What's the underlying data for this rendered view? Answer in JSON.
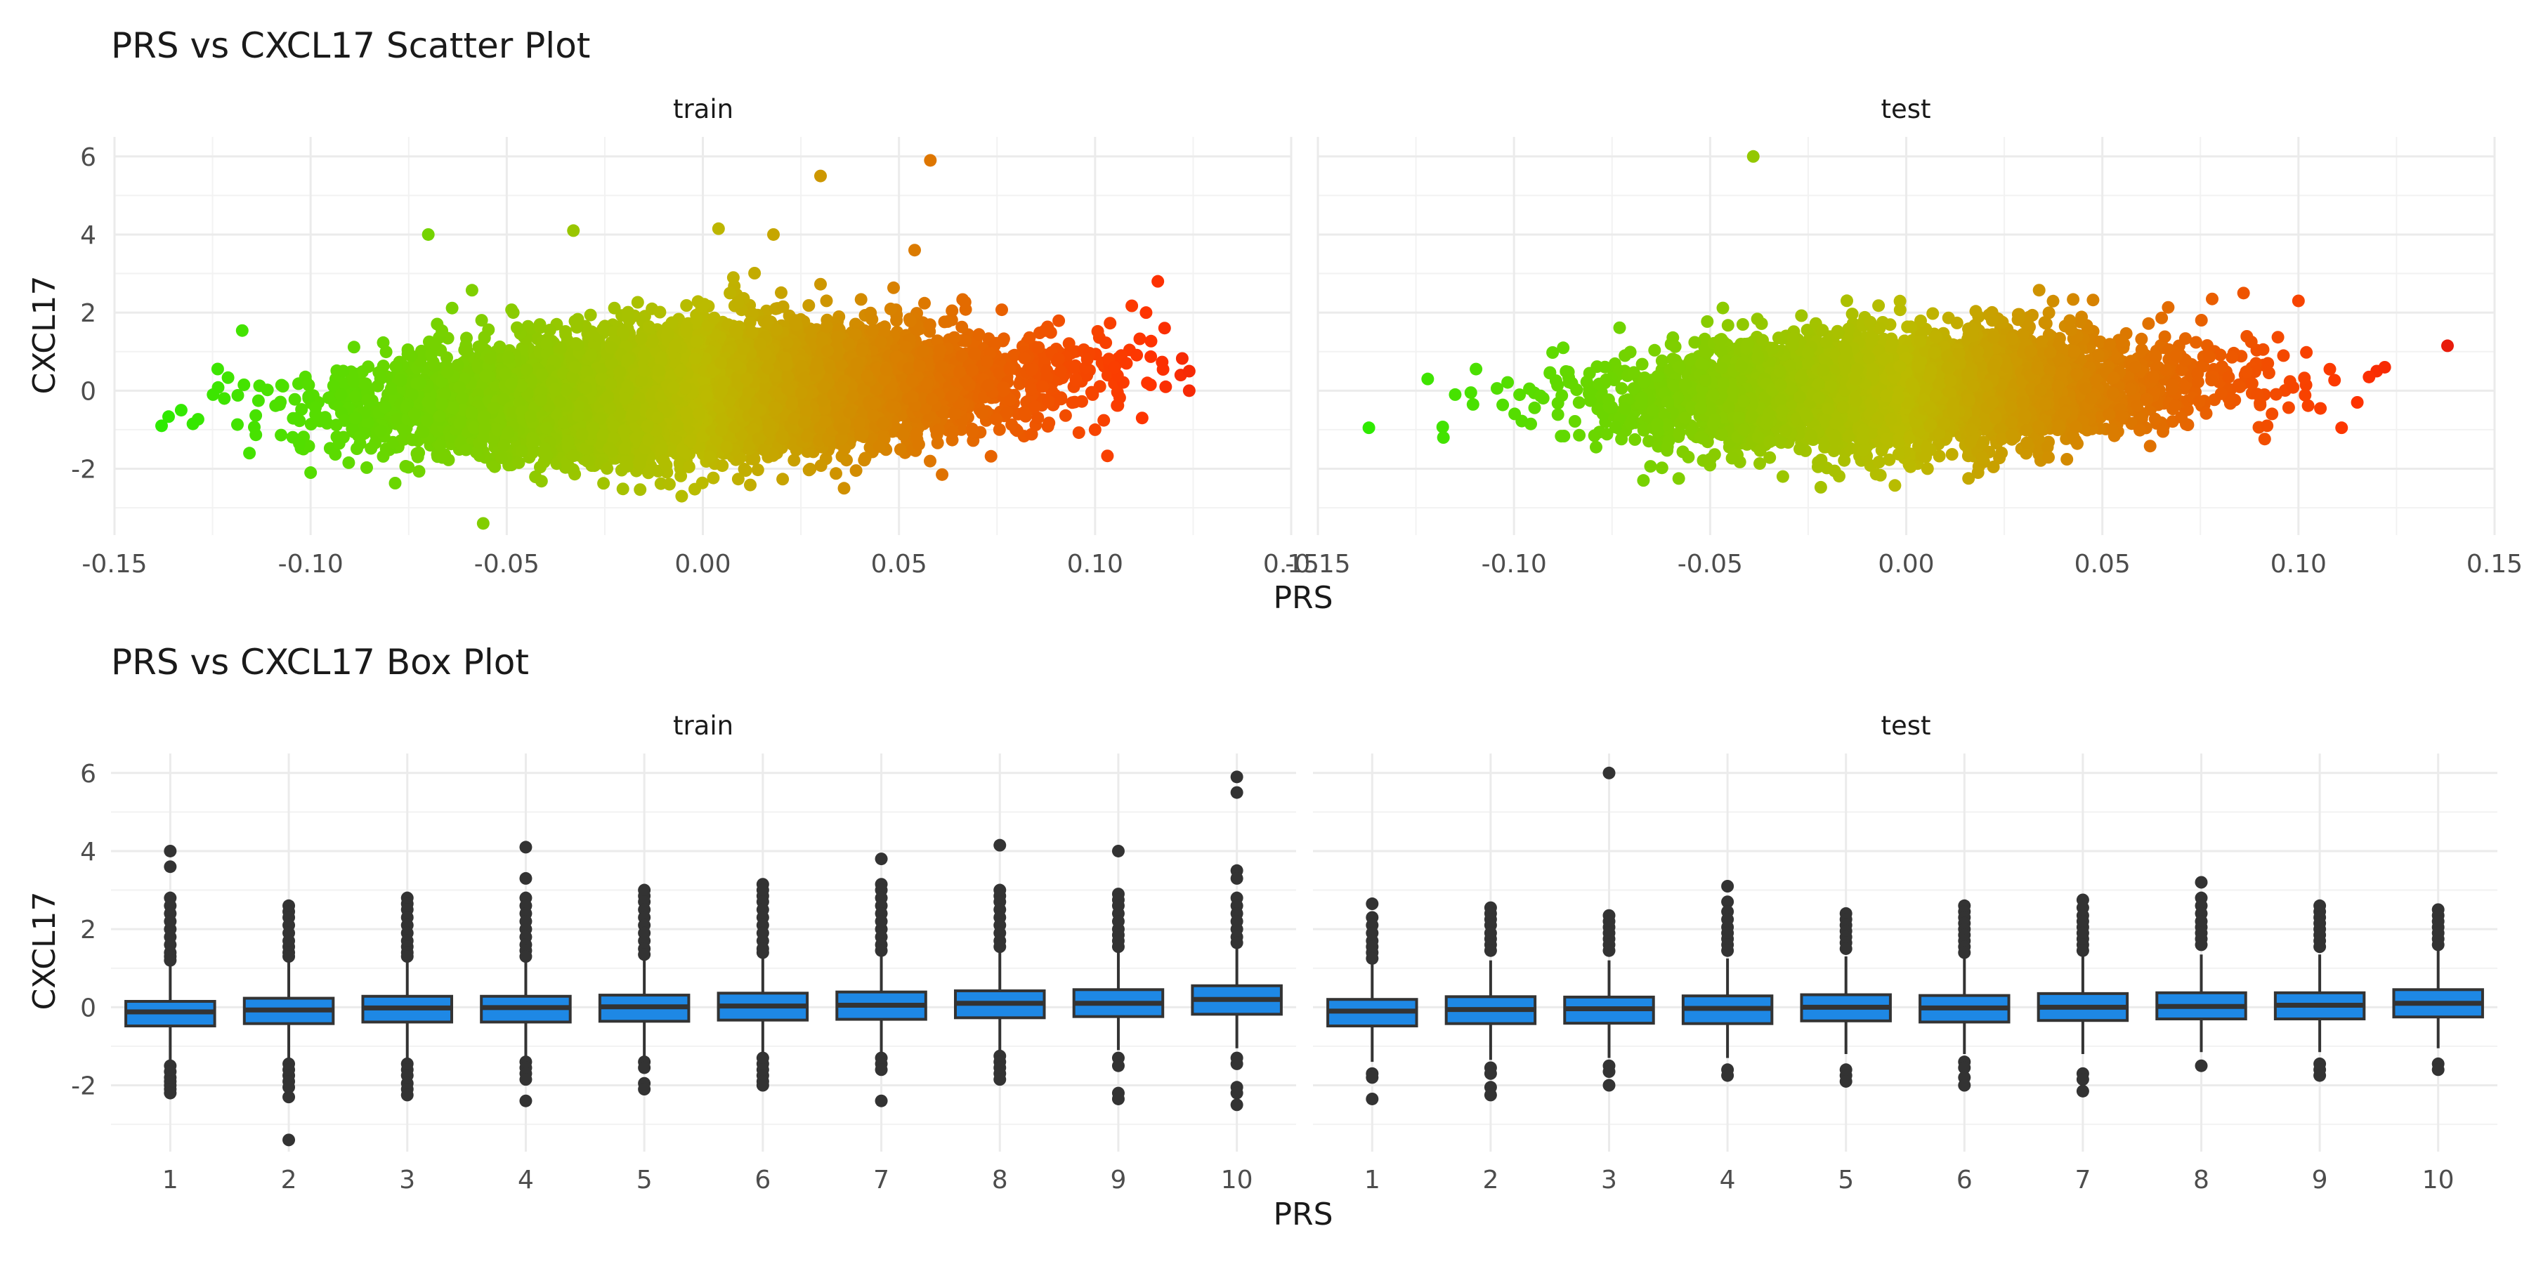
{
  "chart_data": [
    {
      "type": "scatter",
      "title": "PRS vs CXCL17 Scatter Plot",
      "xlabel": "PRS",
      "ylabel": "CXCL17",
      "xlim": [
        -0.15,
        0.15
      ],
      "ylim": [
        -3.7,
        6.5
      ],
      "x_ticks": [
        "-0.15",
        "-0.10",
        "-0.05",
        "0.00",
        "0.05",
        "0.10",
        "0.15"
      ],
      "y_ticks": [
        "-2",
        "0",
        "2",
        "4",
        "6"
      ],
      "color_scale": {
        "low": "#22ee00",
        "mid": "#bbbb00",
        "high": "#ff3300",
        "top": "#dd1111"
      },
      "panels": [
        {
          "name": "train",
          "cloud": {
            "n": 9000,
            "x_sd": 0.038,
            "y_mean": 0.0,
            "y_sd": 0.8,
            "y_slope": 4.0,
            "x_clip": [
              -0.14,
              0.125
            ],
            "seed": 11
          },
          "points": [
            {
              "x": -0.138,
              "y": -0.9
            },
            {
              "x": -0.133,
              "y": -0.5
            },
            {
              "x": -0.13,
              "y": -0.85
            },
            {
              "x": -0.122,
              "y": -0.2
            },
            {
              "x": -0.117,
              "y": 0.15
            },
            {
              "x": -0.1,
              "y": -2.1
            },
            {
              "x": -0.07,
              "y": 4.0
            },
            {
              "x": -0.056,
              "y": -3.4
            },
            {
              "x": -0.033,
              "y": 4.1
            },
            {
              "x": 0.004,
              "y": 4.15
            },
            {
              "x": 0.018,
              "y": 4.0
            },
            {
              "x": 0.03,
              "y": 5.5
            },
            {
              "x": 0.058,
              "y": 5.9
            },
            {
              "x": 0.054,
              "y": 3.6
            },
            {
              "x": 0.036,
              "y": -2.5
            },
            {
              "x": 0.061,
              "y": -2.15
            },
            {
              "x": 0.113,
              "y": 2.0
            },
            {
              "x": 0.116,
              "y": 2.8
            },
            {
              "x": 0.124,
              "y": 0.5
            },
            {
              "x": 0.124,
              "y": 0.0
            },
            {
              "x": 0.118,
              "y": 0.1
            },
            {
              "x": 0.112,
              "y": -0.7
            },
            {
              "x": 0.1,
              "y": -1.0
            },
            {
              "x": 0.108,
              "y": 0.7
            },
            {
              "x": 0.098,
              "y": 0.8
            },
            {
              "x": 0.105,
              "y": 0.6
            }
          ]
        },
        {
          "name": "test",
          "cloud": {
            "n": 4200,
            "x_sd": 0.035,
            "y_mean": 0.0,
            "y_sd": 0.75,
            "y_slope": 3.0,
            "x_clip": [
              -0.125,
              0.125
            ],
            "seed": 23
          },
          "points": [
            {
              "x": -0.137,
              "y": -0.95
            },
            {
              "x": -0.122,
              "y": 0.3
            },
            {
              "x": -0.118,
              "y": -1.2
            },
            {
              "x": -0.115,
              "y": -0.1
            },
            {
              "x": -0.111,
              "y": -0.05
            },
            {
              "x": -0.039,
              "y": 6.0
            },
            {
              "x": -0.067,
              "y": -2.3
            },
            {
              "x": -0.058,
              "y": -2.25
            },
            {
              "x": 0.122,
              "y": 0.6
            },
            {
              "x": 0.138,
              "y": 1.15
            },
            {
              "x": 0.111,
              "y": -0.95
            },
            {
              "x": 0.1,
              "y": 2.3
            },
            {
              "x": 0.092,
              "y": -0.9
            },
            {
              "x": 0.086,
              "y": 2.5
            },
            {
              "x": 0.078,
              "y": 2.35
            },
            {
              "x": 0.115,
              "y": -0.3
            },
            {
              "x": 0.118,
              "y": 0.35
            },
            {
              "x": 0.108,
              "y": 0.55
            }
          ]
        }
      ]
    },
    {
      "type": "box",
      "title": "PRS vs CXCL17 Box Plot",
      "xlabel": "PRS",
      "ylabel": "CXCL17",
      "ylim": [
        -3.7,
        6.5
      ],
      "categories": [
        "1",
        "2",
        "3",
        "4",
        "5",
        "6",
        "7",
        "8",
        "9",
        "10"
      ],
      "y_ticks": [
        "-2",
        "0",
        "2",
        "4",
        "6"
      ],
      "box_color": "#1e88e5",
      "panels": [
        {
          "name": "train",
          "boxes": [
            {
              "q1": -0.48,
              "median": -0.12,
              "q3": 0.15,
              "lo": -1.4,
              "hi": 1.1,
              "out": [
                4.0,
                3.6,
                2.8,
                2.6,
                2.4,
                2.2,
                2.0,
                1.8,
                1.6,
                1.4,
                1.3,
                1.2,
                -1.5,
                -1.65,
                -1.8,
                -1.9,
                -2.0,
                -2.1,
                -2.2
              ]
            },
            {
              "q1": -0.42,
              "median": -0.07,
              "q3": 0.23,
              "lo": -1.3,
              "hi": 1.15,
              "out": [
                2.6,
                2.45,
                2.3,
                2.1,
                1.9,
                1.7,
                1.55,
                1.4,
                1.3,
                -1.45,
                -1.6,
                -1.75,
                -1.9,
                -2.05,
                -2.3,
                -3.4
              ]
            },
            {
              "q1": -0.38,
              "median": -0.02,
              "q3": 0.28,
              "lo": -1.3,
              "hi": 1.2,
              "out": [
                2.8,
                2.65,
                2.5,
                2.3,
                2.1,
                1.9,
                1.7,
                1.55,
                1.4,
                1.3,
                -1.45,
                -1.6,
                -1.75,
                -1.95,
                -2.1,
                -2.25
              ]
            },
            {
              "q1": -0.38,
              "median": -0.01,
              "q3": 0.28,
              "lo": -1.3,
              "hi": 1.2,
              "out": [
                4.1,
                3.3,
                2.8,
                2.6,
                2.4,
                2.2,
                2.0,
                1.8,
                1.6,
                1.45,
                1.3,
                -1.4,
                -1.55,
                -1.7,
                -1.85,
                -2.4
              ]
            },
            {
              "q1": -0.36,
              "median": 0.01,
              "q3": 0.31,
              "lo": -1.25,
              "hi": 1.25,
              "out": [
                3.0,
                2.85,
                2.7,
                2.5,
                2.3,
                2.1,
                1.9,
                1.7,
                1.5,
                1.35,
                -1.4,
                -1.55,
                -1.95,
                -2.1
              ]
            },
            {
              "q1": -0.33,
              "median": 0.03,
              "q3": 0.36,
              "lo": -1.2,
              "hi": 1.3,
              "out": [
                3.15,
                3.0,
                2.85,
                2.7,
                2.5,
                2.3,
                2.1,
                1.9,
                1.7,
                1.5,
                1.4,
                -1.3,
                -1.45,
                -1.6,
                -1.75,
                -1.9,
                -2.0
              ]
            },
            {
              "q1": -0.31,
              "median": 0.05,
              "q3": 0.39,
              "lo": -1.2,
              "hi": 1.35,
              "out": [
                3.8,
                3.15,
                3.0,
                2.8,
                2.6,
                2.4,
                2.2,
                2.0,
                1.8,
                1.6,
                1.45,
                -1.3,
                -1.45,
                -1.6,
                -2.4
              ]
            },
            {
              "q1": -0.27,
              "median": 0.1,
              "q3": 0.42,
              "lo": -1.15,
              "hi": 1.4,
              "out": [
                4.15,
                3.0,
                2.85,
                2.7,
                2.5,
                2.3,
                2.1,
                1.9,
                1.7,
                1.55,
                -1.25,
                -1.4,
                -1.55,
                -1.7,
                -1.85
              ]
            },
            {
              "q1": -0.24,
              "median": 0.1,
              "q3": 0.45,
              "lo": -1.1,
              "hi": 1.45,
              "out": [
                4.0,
                2.9,
                2.75,
                2.6,
                2.4,
                2.2,
                2.0,
                1.85,
                1.7,
                1.55,
                -1.3,
                -1.5,
                -2.2,
                -2.35
              ]
            },
            {
              "q1": -0.18,
              "median": 0.2,
              "q3": 0.55,
              "lo": -1.05,
              "hi": 1.55,
              "out": [
                5.9,
                5.5,
                3.5,
                3.3,
                2.8,
                2.6,
                2.4,
                2.2,
                2.0,
                1.8,
                1.65,
                -1.3,
                -1.45,
                -2.05,
                -2.2,
                -2.5
              ]
            }
          ]
        },
        {
          "name": "test",
          "boxes": [
            {
              "q1": -0.48,
              "median": -0.1,
              "q3": 0.2,
              "lo": -1.4,
              "hi": 1.15,
              "out": [
                2.65,
                2.3,
                2.1,
                1.9,
                1.7,
                1.55,
                1.4,
                1.25,
                -1.7,
                -1.8,
                -2.35
              ]
            },
            {
              "q1": -0.42,
              "median": -0.06,
              "q3": 0.27,
              "lo": -1.35,
              "hi": 1.2,
              "out": [
                2.55,
                2.4,
                2.25,
                2.1,
                1.9,
                1.75,
                1.6,
                1.45,
                -1.55,
                -1.7,
                -2.05,
                -2.25
              ]
            },
            {
              "q1": -0.41,
              "median": -0.04,
              "q3": 0.26,
              "lo": -1.3,
              "hi": 1.2,
              "out": [
                6.0,
                2.35,
                2.2,
                2.05,
                1.9,
                1.75,
                1.6,
                1.45,
                -1.5,
                -1.65,
                -2.0
              ]
            },
            {
              "q1": -0.42,
              "median": -0.03,
              "q3": 0.29,
              "lo": -1.3,
              "hi": 1.25,
              "out": [
                3.1,
                2.7,
                2.45,
                2.25,
                2.05,
                1.9,
                1.75,
                1.6,
                1.45,
                -1.6,
                -1.75
              ]
            },
            {
              "q1": -0.35,
              "median": 0.0,
              "q3": 0.32,
              "lo": -1.2,
              "hi": 1.3,
              "out": [
                2.4,
                2.25,
                2.1,
                1.95,
                1.8,
                1.65,
                1.5,
                -1.6,
                -1.75,
                -1.9
              ]
            },
            {
              "q1": -0.38,
              "median": -0.02,
              "q3": 0.3,
              "lo": -1.2,
              "hi": 1.25,
              "out": [
                2.6,
                2.45,
                2.3,
                2.15,
                2.0,
                1.85,
                1.7,
                1.55,
                1.4,
                -1.4,
                -1.55,
                -1.8,
                -2.0
              ]
            },
            {
              "q1": -0.34,
              "median": 0.0,
              "q3": 0.35,
              "lo": -1.2,
              "hi": 1.3,
              "out": [
                2.75,
                2.55,
                2.35,
                2.2,
                2.05,
                1.9,
                1.75,
                1.6,
                1.45,
                -1.7,
                -1.85,
                -2.15
              ]
            },
            {
              "q1": -0.3,
              "median": 0.02,
              "q3": 0.37,
              "lo": -1.15,
              "hi": 1.35,
              "out": [
                3.2,
                2.8,
                2.6,
                2.4,
                2.2,
                2.05,
                1.9,
                1.75,
                1.6,
                -1.5
              ]
            },
            {
              "q1": -0.3,
              "median": 0.05,
              "q3": 0.37,
              "lo": -1.15,
              "hi": 1.35,
              "out": [
                2.6,
                2.45,
                2.3,
                2.15,
                2.0,
                1.85,
                1.7,
                1.55,
                -1.45,
                -1.6,
                -1.75
              ]
            },
            {
              "q1": -0.25,
              "median": 0.1,
              "q3": 0.45,
              "lo": -1.05,
              "hi": 1.45,
              "out": [
                2.5,
                2.35,
                2.2,
                2.05,
                1.9,
                1.75,
                1.6,
                -1.45,
                -1.6
              ]
            }
          ]
        }
      ]
    }
  ]
}
